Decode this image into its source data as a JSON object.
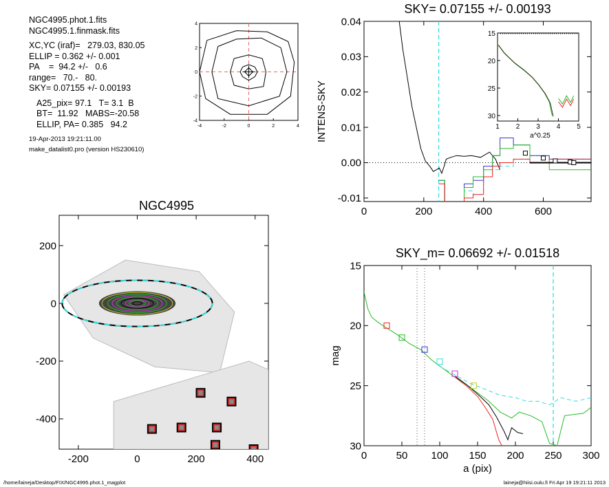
{
  "header": {
    "lines_a": [
      "NGC4995.phot.1.fits",
      "NGC4995.1.finmask.fits"
    ],
    "lines_b": [
      "XC,YC (iraf)=   279.03, 830.05",
      "ELLIP = 0.362 +/- 0.001",
      "PA    =  94.2 +/-   0.6",
      "range=   70.-   80.",
      "SKY= 0.07155 +/- 0.00193"
    ],
    "lines_c": [
      "A25_pix= 97.1   T= 3.1  B",
      "BT=  11.92   MABS=-20.58",
      "ELLIP, PA= 0.385   94.2"
    ],
    "lines_d": [
      "19-Apr-2013 19:21:11.00",
      "make_datalist0.pro (version HS230610)"
    ]
  },
  "footer": {
    "left": "/home/laineja/Desktop/FIX/NGC4995.phot.1_magplot",
    "right": "laineja@hiisi.oulu.fi  Fri Apr 19 19:21:11 2013"
  },
  "colors": {
    "black": "#000000",
    "red": "#ee2222",
    "green": "#22bb22",
    "blue": "#3333cc",
    "cyan": "#33dddd",
    "magenta": "#cc33cc",
    "yellow": "#cccc22",
    "pinkdash": "#ee6666",
    "dotted": "#555555"
  },
  "chart_data": [
    {
      "id": "centroid",
      "type": "line",
      "title": "",
      "xlim": [
        -4,
        4
      ],
      "ylim": [
        -4,
        4
      ],
      "xticks": [
        -4,
        -2,
        0,
        2,
        4
      ],
      "yticks": [
        -4,
        -2,
        0,
        2,
        4
      ],
      "contours": [
        [
          [
            -0.5,
            0.4
          ],
          [
            0,
            0.6
          ],
          [
            0.5,
            0.4
          ],
          [
            0.7,
            0
          ],
          [
            0.5,
            -0.4
          ],
          [
            0,
            -0.7
          ],
          [
            -0.5,
            -0.4
          ],
          [
            -0.7,
            0
          ]
        ],
        [
          [
            -1.2,
            1.1
          ],
          [
            0,
            1.4
          ],
          [
            1.1,
            1.1
          ],
          [
            1.4,
            0
          ],
          [
            1.2,
            -1.2
          ],
          [
            0,
            -1.4
          ],
          [
            -1.2,
            -1.1
          ],
          [
            -1.5,
            0
          ]
        ],
        [
          [
            -2.5,
            2.1
          ],
          [
            -1,
            2.7
          ],
          [
            1,
            2.8
          ],
          [
            2.6,
            2
          ],
          [
            3.1,
            0
          ],
          [
            2.5,
            -2
          ],
          [
            0,
            -2.8
          ],
          [
            -2.5,
            -2.2
          ],
          [
            -3,
            0
          ]
        ],
        [
          [
            -3.4,
            2.6
          ],
          [
            -1,
            3.4
          ],
          [
            1.5,
            3.3
          ],
          [
            3.2,
            2.5
          ],
          [
            3.7,
            0.8
          ],
          [
            3.4,
            -2
          ],
          [
            1.5,
            -3.5
          ],
          [
            -1.5,
            -3.5
          ],
          [
            -3.5,
            -2.2
          ],
          [
            -4,
            0
          ]
        ]
      ],
      "crosshair": [
        0,
        0
      ]
    },
    {
      "id": "sky",
      "type": "line",
      "title": "SKY= 0.07155 +/- 0.00193",
      "xlabel": "",
      "ylabel": "INTENS-SKY",
      "xlim": [
        0,
        760
      ],
      "ylim": [
        -0.011,
        0.04
      ],
      "xticks": [
        0,
        200,
        400,
        600
      ],
      "yticks": [
        -0.01,
        0.0,
        0.01,
        0.02,
        0.03,
        0.04
      ],
      "ytick_labels": [
        "-0.01",
        "0.00",
        "0.01",
        "0.02",
        "0.03",
        "0.04"
      ],
      "vline": 250,
      "series": [
        {
          "color": "black",
          "values": [
            [
              118,
              0.04
            ],
            [
              130,
              0.032
            ],
            [
              145,
              0.024
            ],
            [
              160,
              0.016
            ],
            [
              175,
              0.01
            ],
            [
              190,
              0.004
            ],
            [
              205,
              0.0005
            ],
            [
              220,
              -0.001
            ],
            [
              232,
              -0.0025
            ],
            [
              242,
              -0.002
            ],
            [
              252,
              -0.0015
            ],
            [
              260,
              -0.003
            ],
            [
              268,
              -0.001
            ],
            [
              275,
              0.001
            ],
            [
              290,
              0.0015
            ],
            [
              310,
              0.002
            ],
            [
              335,
              0.0018
            ],
            [
              360,
              0.002
            ],
            [
              390,
              0.0015
            ],
            [
              420,
              0.003
            ],
            [
              440,
              0.001
            ],
            [
              455,
              -0.002
            ]
          ]
        },
        {
          "color": "cyan",
          "step": true,
          "values": [
            [
              250,
              -0.005
            ],
            [
              270,
              -0.012
            ],
            [
              300,
              -0.014
            ],
            [
              335,
              -0.008
            ],
            [
              365,
              -0.009
            ],
            [
              400,
              -0.004
            ],
            [
              430,
              -0.002
            ],
            [
              455,
              -0.001
            ],
            [
              500,
              0.001
            ],
            [
              555,
              0.002
            ],
            [
              620,
              0.001
            ],
            [
              760,
              0.001
            ]
          ]
        },
        {
          "color": "blue",
          "step": true,
          "values": [
            [
              250,
              -0.005
            ],
            [
              270,
              -0.012
            ],
            [
              300,
              -0.013
            ],
            [
              335,
              -0.006
            ],
            [
              365,
              -0.005
            ],
            [
              400,
              -0.001
            ],
            [
              430,
              0.002
            ],
            [
              455,
              0.007
            ],
            [
              500,
              0.005
            ],
            [
              555,
              0.002
            ],
            [
              620,
              0.001
            ],
            [
              760,
              0.001
            ]
          ]
        },
        {
          "color": "green",
          "step": true,
          "values": [
            [
              250,
              -0.005
            ],
            [
              270,
              -0.013
            ],
            [
              300,
              -0.012
            ],
            [
              335,
              -0.007
            ],
            [
              365,
              -0.004
            ],
            [
              400,
              -0.002
            ],
            [
              430,
              0.002
            ],
            [
              455,
              0.004
            ],
            [
              500,
              0.005
            ],
            [
              555,
              0.0
            ],
            [
              620,
              -0.002
            ],
            [
              760,
              -0.002
            ]
          ]
        },
        {
          "color": "red",
          "step": true,
          "values": [
            [
              250,
              -0.006
            ],
            [
              270,
              -0.013
            ],
            [
              300,
              -0.014
            ],
            [
              335,
              -0.01
            ],
            [
              365,
              -0.009
            ],
            [
              400,
              -0.004
            ],
            [
              430,
              -0.001
            ],
            [
              455,
              0.0
            ],
            [
              500,
              0.001
            ],
            [
              555,
              0.0
            ],
            [
              620,
              0.001
            ],
            [
              760,
              0.001
            ]
          ]
        }
      ],
      "markers": [
        [
          540,
          0.0027
        ],
        [
          600,
          0.0013
        ],
        [
          640,
          0.0005
        ],
        [
          690,
          0.0002
        ],
        [
          702,
          0.0
        ]
      ],
      "inset": {
        "xlabel": "a^0.25",
        "xlim": [
          1,
          5
        ],
        "ylim": [
          15,
          31
        ],
        "xticks": [
          1,
          2,
          3,
          4,
          5
        ],
        "yticks": [
          15,
          20,
          25,
          30
        ],
        "values": [
          [
            1.0,
            17.0
          ],
          [
            1.3,
            18.5
          ],
          [
            1.8,
            20.3
          ],
          [
            2.3,
            21.7
          ],
          [
            2.7,
            23.0
          ],
          [
            3.0,
            24.3
          ],
          [
            3.3,
            25.8
          ],
          [
            3.55,
            27.5
          ],
          [
            3.7,
            30.0
          ]
        ],
        "tail": [
          [
            4.0,
            27.5
          ],
          [
            4.2,
            28.5
          ],
          [
            4.4,
            27.0
          ],
          [
            4.6,
            28.2
          ],
          [
            4.75,
            27.0
          ]
        ]
      }
    },
    {
      "id": "image",
      "type": "scatter",
      "title": "NGC4995",
      "xlim": [
        -265,
        445
      ],
      "ylim": [
        -505,
        305
      ],
      "xticks": [
        -200,
        0,
        200,
        400
      ],
      "yticks": [
        -400,
        -200,
        0,
        200
      ],
      "ytick_labels": [
        "-400",
        "-200",
        "0",
        "200"
      ],
      "ellipse": {
        "cx": 0,
        "cy": 0,
        "rx": 255,
        "ry": 80
      },
      "boxes": [
        [
          215,
          -310
        ],
        [
          320,
          -340
        ],
        [
          50,
          -435
        ],
        [
          150,
          -430
        ],
        [
          270,
          -430
        ],
        [
          265,
          -490
        ],
        [
          395,
          -505
        ]
      ]
    },
    {
      "id": "mag",
      "type": "line",
      "title": "SKY_m=  0.06692 +/- 0.01518",
      "xlabel": "a (pix)",
      "ylabel": "mag",
      "xlim": [
        0,
        300
      ],
      "ylim": [
        15,
        30
      ],
      "xticks": [
        0,
        50,
        100,
        150,
        200,
        250,
        300
      ],
      "yticks": [
        15,
        20,
        25,
        30
      ],
      "vlines_dotted": [
        70,
        80
      ],
      "vline_dashed": 250,
      "series": [
        {
          "color": "green",
          "values": [
            [
              0,
              17.2
            ],
            [
              5,
              18.6
            ],
            [
              10,
              19.3
            ],
            [
              20,
              19.8
            ],
            [
              30,
              20.2
            ],
            [
              45,
              20.8
            ],
            [
              60,
              21.5
            ],
            [
              75,
              22.0
            ],
            [
              90,
              22.9
            ],
            [
              105,
              23.6
            ],
            [
              120,
              24.3
            ],
            [
              135,
              24.9
            ],
            [
              150,
              25.6
            ],
            [
              165,
              26.3
            ],
            [
              180,
              27.2
            ],
            [
              195,
              27.7
            ],
            [
              205,
              27.2
            ],
            [
              220,
              27.5
            ],
            [
              235,
              28.0
            ],
            [
              245,
              29.8
            ],
            [
              255,
              30.0
            ],
            [
              265,
              27.5
            ],
            [
              290,
              27.3
            ],
            [
              300,
              26.8
            ]
          ]
        },
        {
          "color": "black",
          "values": [
            [
              120,
              24.2
            ],
            [
              135,
              24.9
            ],
            [
              150,
              25.7
            ],
            [
              165,
              26.6
            ],
            [
              175,
              27.6
            ],
            [
              185,
              28.8
            ],
            [
              190,
              29.5
            ],
            [
              195,
              28.5
            ],
            [
              203,
              28.9
            ],
            [
              210,
              29.0
            ]
          ]
        },
        {
          "color": "red",
          "values": [
            [
              120,
              24.3
            ],
            [
              135,
              25.0
            ],
            [
              150,
              25.9
            ],
            [
              160,
              26.8
            ],
            [
              170,
              27.8
            ],
            [
              178,
              29.5
            ],
            [
              182,
              30.0
            ]
          ]
        },
        {
          "color": "cyan",
          "dashed": true,
          "values": [
            [
              100,
              23.4
            ],
            [
              120,
              24.1
            ],
            [
              140,
              24.8
            ],
            [
              160,
              25.3
            ],
            [
              180,
              25.8
            ],
            [
              200,
              26.0
            ],
            [
              215,
              26.3
            ],
            [
              230,
              26.3
            ],
            [
              245,
              26.6
            ],
            [
              260,
              26.0
            ],
            [
              280,
              26.3
            ],
            [
              300,
              26.0
            ]
          ]
        }
      ],
      "squares": [
        [
          30,
          20.0,
          "red"
        ],
        [
          50,
          21.0,
          "green"
        ],
        [
          80,
          22.0,
          "blue"
        ],
        [
          100,
          23.0,
          "cyan"
        ],
        [
          120,
          24.0,
          "magenta"
        ],
        [
          145,
          25.0,
          "yellow"
        ]
      ]
    }
  ]
}
